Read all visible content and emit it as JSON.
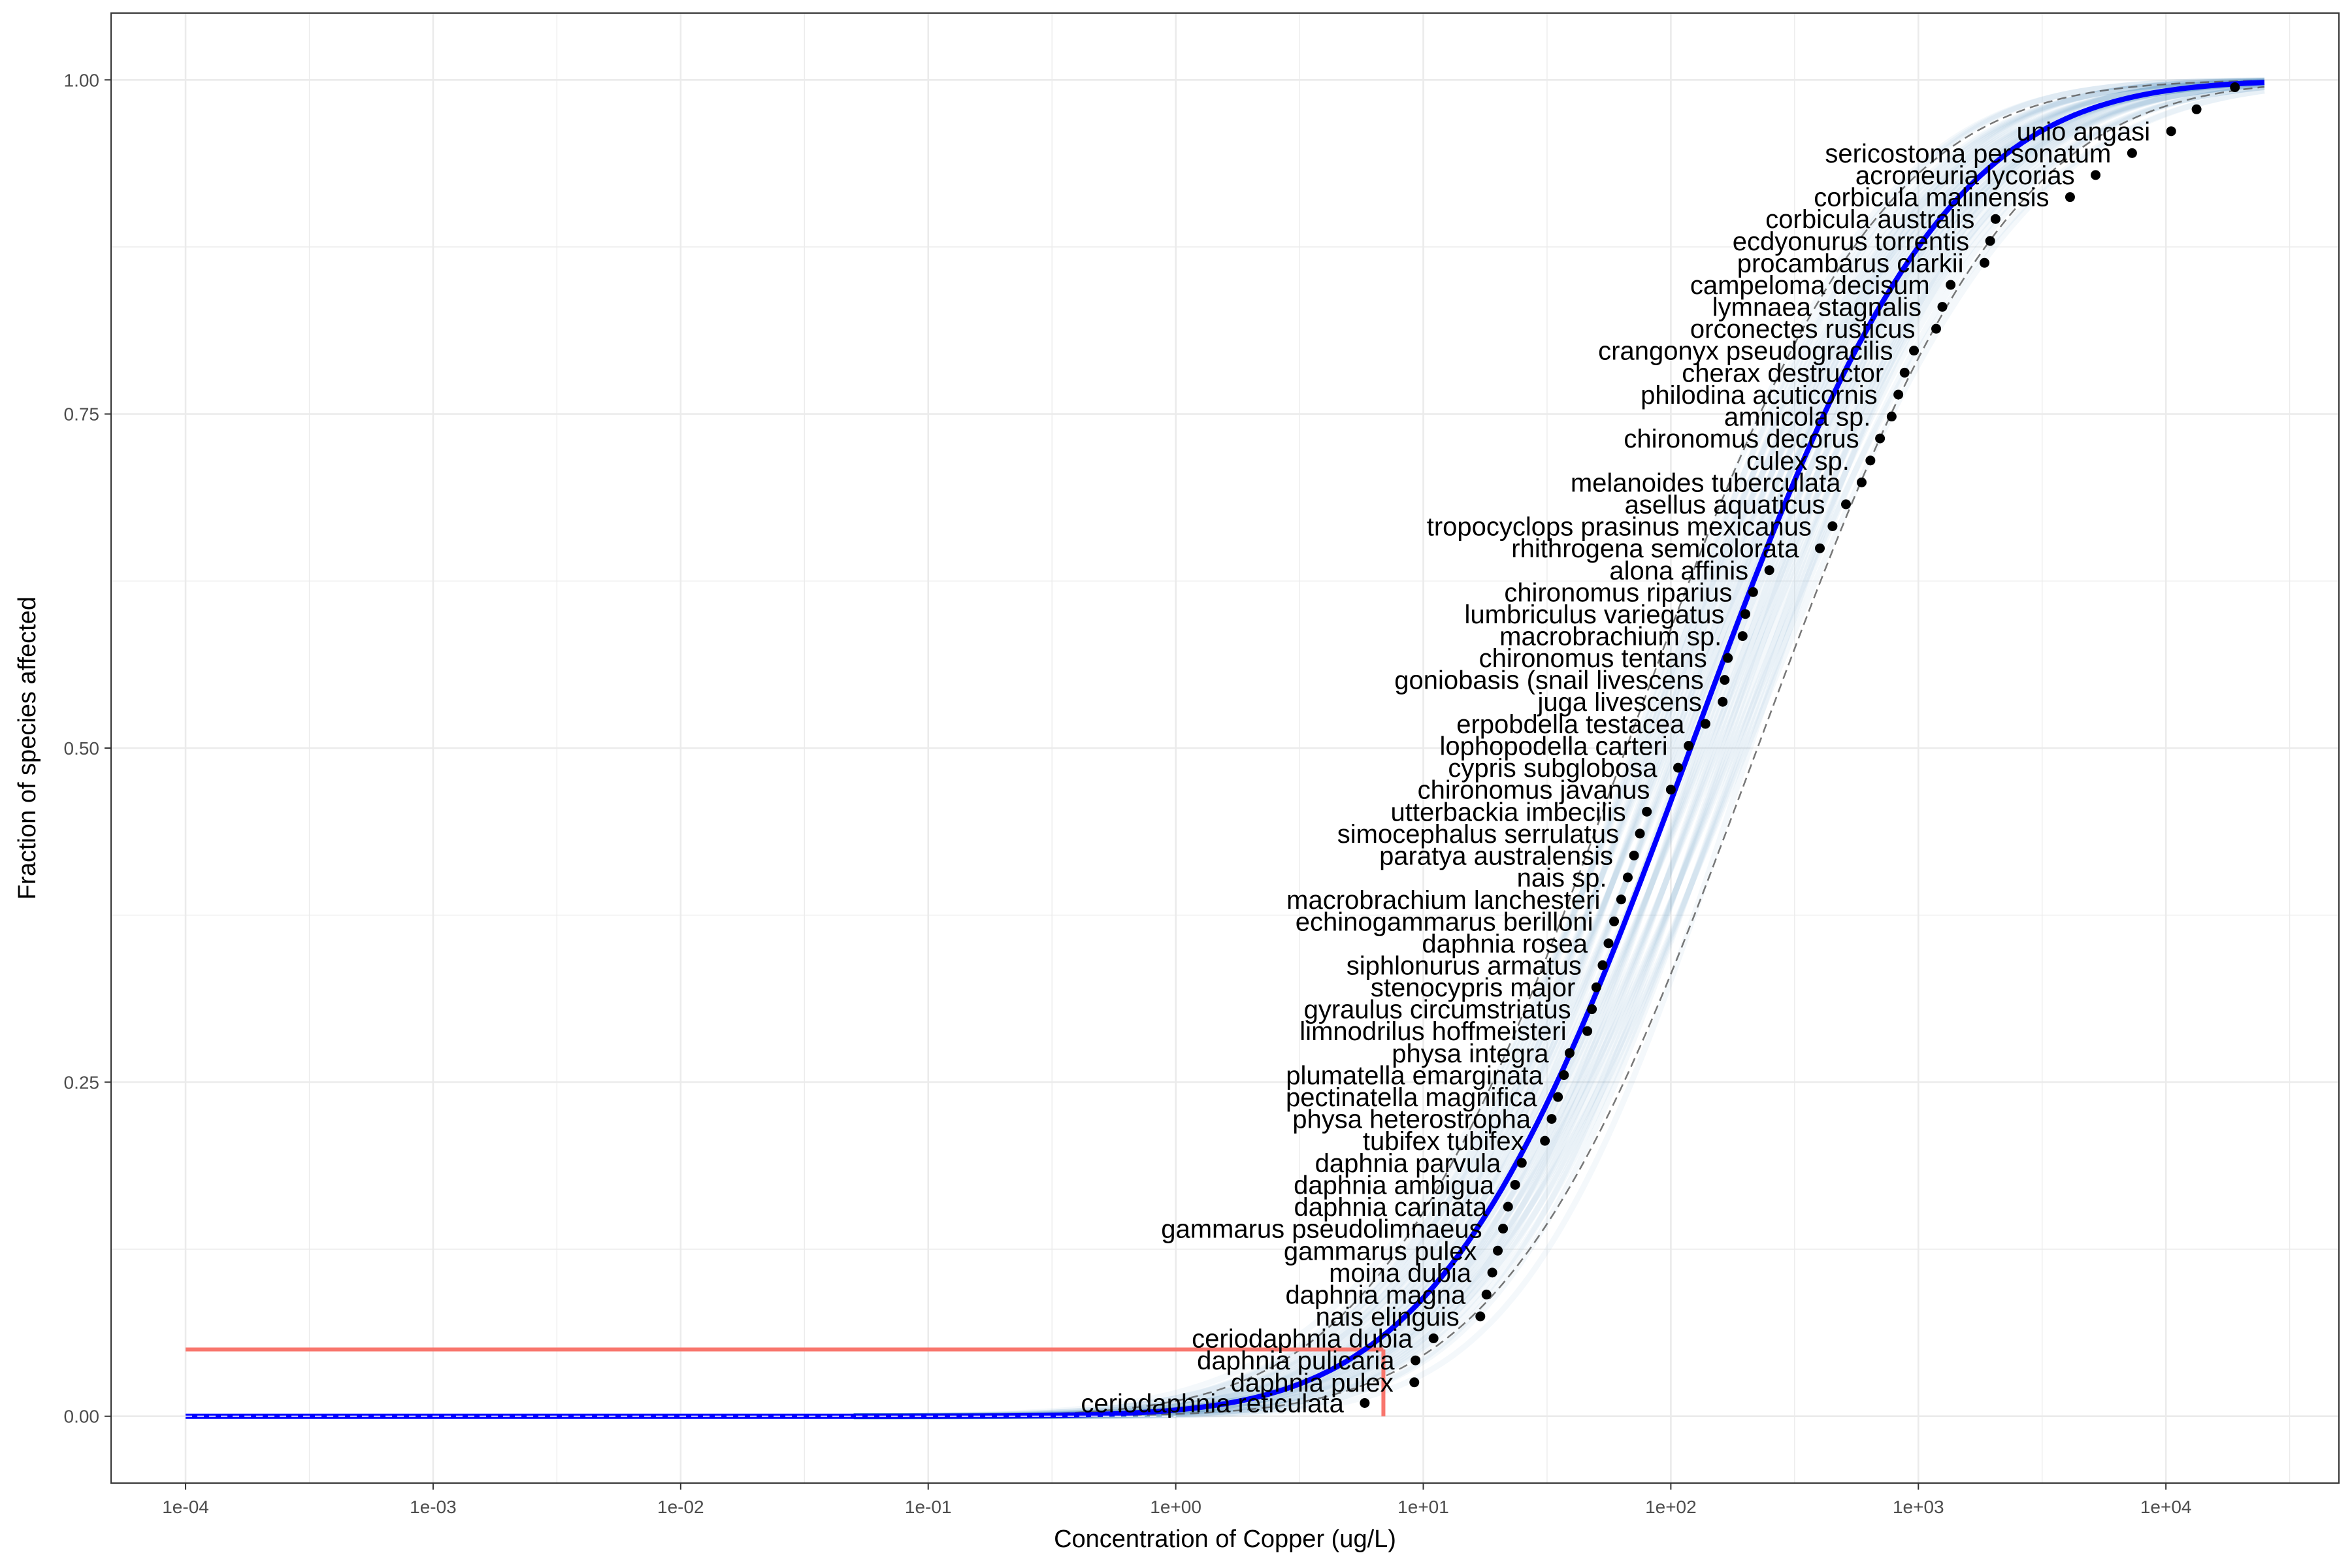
{
  "chart_data": {
    "type": "line",
    "title": "",
    "xlabel": "Concentration of Copper (ug/L)",
    "ylabel": "Fraction of species affected",
    "xscale": "log10",
    "xlim": [
      5e-05,
      50000
    ],
    "ylim": [
      -0.05,
      1.05
    ],
    "x_tick_labels": [
      "1e-04",
      "1e-03",
      "1e-02",
      "1e-01",
      "1e+00",
      "1e+01",
      "1e+02",
      "1e+03",
      "1e+04"
    ],
    "x_tick_values": [
      0.0001,
      0.001,
      0.01,
      0.1,
      1,
      10,
      100,
      1000,
      10000
    ],
    "y_tick_labels": [
      "0.00",
      "0.25",
      "0.50",
      "0.75",
      "1.00"
    ],
    "y_tick_values": [
      0,
      0.25,
      0.5,
      0.75,
      1
    ],
    "grid": true,
    "legend": "none",
    "colors": {
      "fitted_curve": "#0000ff",
      "bootstrap_curves": "#4682b4",
      "confidence_band": "#555555",
      "hazard_line": "#f8766d",
      "points": "#000000",
      "grid": "#ebebeb",
      "panel_border": "#333333"
    },
    "fitted_curve": {
      "distribution": "lognormal",
      "log10_median": 2.08,
      "log10_sd": 0.8,
      "x_range": [
        0.0001,
        25000
      ]
    },
    "confidence_band": {
      "lower_log10_median": 2.35,
      "upper_log10_median": 1.82,
      "log10_sd": 0.8
    },
    "bootstrap_curves": {
      "count": 40,
      "log10_median_range": [
        1.85,
        2.32
      ],
      "log10_sd_range": [
        0.7,
        0.9
      ]
    },
    "hazard_concentration": {
      "fraction": 0.05,
      "concentration": 6.9
    },
    "species_points": [
      {
        "species": "ceriodaphnia reticulata",
        "x": 5.8,
        "y": 0.0099
      },
      {
        "species": "daphnia pulex",
        "x": 9.2,
        "y": 0.0254
      },
      {
        "species": "daphnia pulicaria",
        "x": 9.3,
        "y": 0.0418
      },
      {
        "species": "ceriodaphnia dubia",
        "x": 11.0,
        "y": 0.0583
      },
      {
        "species": "nais elinguis",
        "x": 17.0,
        "y": 0.0747
      },
      {
        "species": "daphnia magna",
        "x": 18.0,
        "y": 0.0911
      },
      {
        "species": "moina dubia",
        "x": 19.0,
        "y": 0.1075
      },
      {
        "species": "gammarus pulex",
        "x": 20.0,
        "y": 0.1239
      },
      {
        "species": "gammarus pseudolimnaeus",
        "x": 21.0,
        "y": 0.1404
      },
      {
        "species": "daphnia carinata",
        "x": 22.0,
        "y": 0.1568
      },
      {
        "species": "daphnia ambigua",
        "x": 23.5,
        "y": 0.1732
      },
      {
        "species": "daphnia parvula",
        "x": 25.0,
        "y": 0.1896
      },
      {
        "species": "tubifex tubifex",
        "x": 31.0,
        "y": 0.2061
      },
      {
        "species": "physa heterostropha",
        "x": 33.0,
        "y": 0.2225
      },
      {
        "species": "pectinatella magnifica",
        "x": 35.0,
        "y": 0.2389
      },
      {
        "species": "plumatella emarginata",
        "x": 37.0,
        "y": 0.2553
      },
      {
        "species": "physa integra",
        "x": 39.0,
        "y": 0.2718
      },
      {
        "species": "limnodrilus hoffmeisteri",
        "x": 46.0,
        "y": 0.2882
      },
      {
        "species": "gyraulus circumstriatus",
        "x": 48.0,
        "y": 0.3046
      },
      {
        "species": "stenocypris major",
        "x": 50.0,
        "y": 0.321
      },
      {
        "species": "siphlonurus armatus",
        "x": 53.0,
        "y": 0.3375
      },
      {
        "species": "daphnia rosea",
        "x": 56.0,
        "y": 0.3539
      },
      {
        "species": "echinogammarus berilloni",
        "x": 59.0,
        "y": 0.3703
      },
      {
        "species": "macrobrachium lanchesteri",
        "x": 63.0,
        "y": 0.3867
      },
      {
        "species": "nais sp.",
        "x": 67.0,
        "y": 0.4032
      },
      {
        "species": "paratya australensis",
        "x": 71.0,
        "y": 0.4196
      },
      {
        "species": "simocephalus serrulatus",
        "x": 75.0,
        "y": 0.436
      },
      {
        "species": "utterbackia imbecilis",
        "x": 80.0,
        "y": 0.4524
      },
      {
        "species": "chironomus javanus",
        "x": 100.0,
        "y": 0.4689
      },
      {
        "species": "cypris subglobosa",
        "x": 107.0,
        "y": 0.4853
      },
      {
        "species": "lophopodella carteri",
        "x": 118.0,
        "y": 0.5017
      },
      {
        "species": "erpobdella testacea",
        "x": 138.0,
        "y": 0.5181
      },
      {
        "species": "juga livescens",
        "x": 162.0,
        "y": 0.5346
      },
      {
        "species": "goniobasis (snail livescens",
        "x": 165.0,
        "y": 0.551
      },
      {
        "species": "chironomus tentans",
        "x": 170.0,
        "y": 0.5674
      },
      {
        "species": "macrobrachium sp.",
        "x": 195.0,
        "y": 0.5838
      },
      {
        "species": "lumbriculus variegatus",
        "x": 200.0,
        "y": 0.6003
      },
      {
        "species": "chironomus riparius",
        "x": 215.0,
        "y": 0.6167
      },
      {
        "species": "alona affinis",
        "x": 250.0,
        "y": 0.6331
      },
      {
        "species": "rhithrogena semicolorata",
        "x": 400.0,
        "y": 0.6495
      },
      {
        "species": "tropocyclops prasinus mexicanus",
        "x": 450.0,
        "y": 0.666
      },
      {
        "species": "asellus aquaticus",
        "x": 510.0,
        "y": 0.6824
      },
      {
        "species": "melanoides tuberculata",
        "x": 590.0,
        "y": 0.6988
      },
      {
        "species": "culex sp.",
        "x": 640.0,
        "y": 0.7152
      },
      {
        "species": "chironomus decorus",
        "x": 700.0,
        "y": 0.7317
      },
      {
        "species": "amnicola sp.",
        "x": 780.0,
        "y": 0.7481
      },
      {
        "species": "philodina acuticornis",
        "x": 830.0,
        "y": 0.7645
      },
      {
        "species": "cherax destructor",
        "x": 880.0,
        "y": 0.7809
      },
      {
        "species": "crangonyx pseudogracilis",
        "x": 960.0,
        "y": 0.7974
      },
      {
        "species": "orconectes rusticus",
        "x": 1180.0,
        "y": 0.8138
      },
      {
        "species": "lymnaea stagnalis",
        "x": 1250.0,
        "y": 0.8302
      },
      {
        "species": "campeloma decisum",
        "x": 1350.0,
        "y": 0.8466
      },
      {
        "species": "procambarus clarkii",
        "x": 1850.0,
        "y": 0.8631
      },
      {
        "species": "ecdyonurus torrentis",
        "x": 1950.0,
        "y": 0.8795
      },
      {
        "species": "corbicula australis",
        "x": 2050.0,
        "y": 0.8959
      },
      {
        "species": "corbicula malinensis",
        "x": 4100.0,
        "y": 0.9123
      },
      {
        "species": "acroneuria lycorias",
        "x": 5200.0,
        "y": 0.9288
      },
      {
        "species": "sericostoma personatum",
        "x": 7300.0,
        "y": 0.9452
      },
      {
        "species": "unio angasi",
        "x": 10500.0,
        "y": 0.9616
      },
      {
        "species": "",
        "x": 13300.0,
        "y": 0.978
      },
      {
        "species": "",
        "x": 19000.0,
        "y": 0.9945
      }
    ]
  }
}
